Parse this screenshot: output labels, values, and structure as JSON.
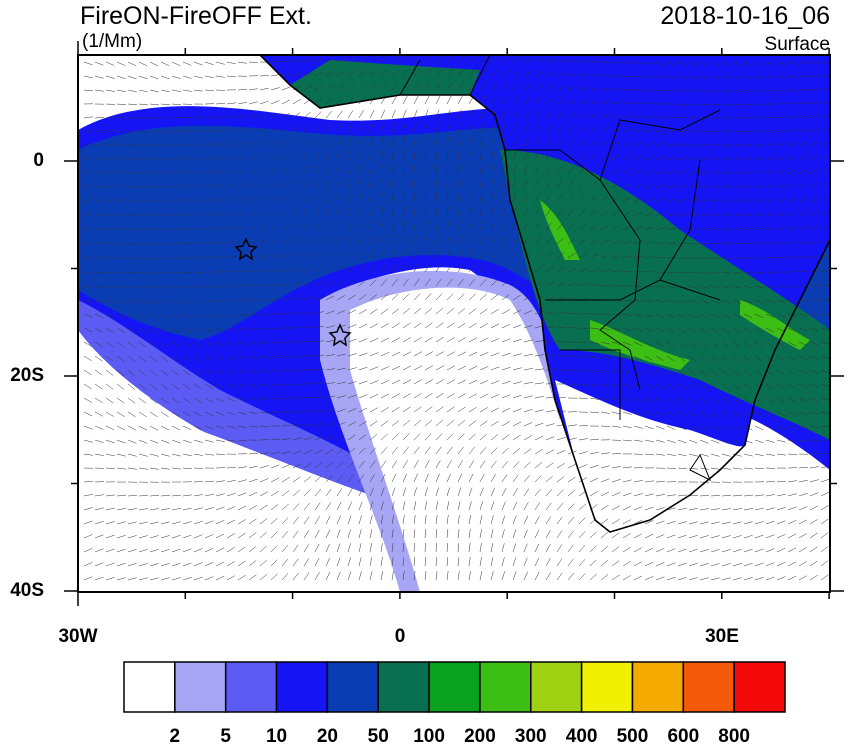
{
  "header": {
    "title": "FireON-FireOFF Ext.",
    "units": "(1/Mm)",
    "time": "2018-10-16_06",
    "level": "Surface"
  },
  "map": {
    "lat_labels": [
      "0",
      "20S",
      "40S"
    ],
    "lon_labels": [
      "30W",
      "0",
      "30E"
    ]
  },
  "colorbar": {
    "colors": [
      "#ffffff",
      "#a6a6f5",
      "#5c5cf5",
      "#1414f5",
      "#0a3cb4",
      "#087050",
      "#0aa020",
      "#3cbe14",
      "#a0d214",
      "#f0f000",
      "#f5aa00",
      "#f55a0a",
      "#f50a0a"
    ],
    "levels": [
      2,
      5,
      10,
      20,
      50,
      100,
      200,
      300,
      400,
      500,
      600,
      800
    ]
  }
}
